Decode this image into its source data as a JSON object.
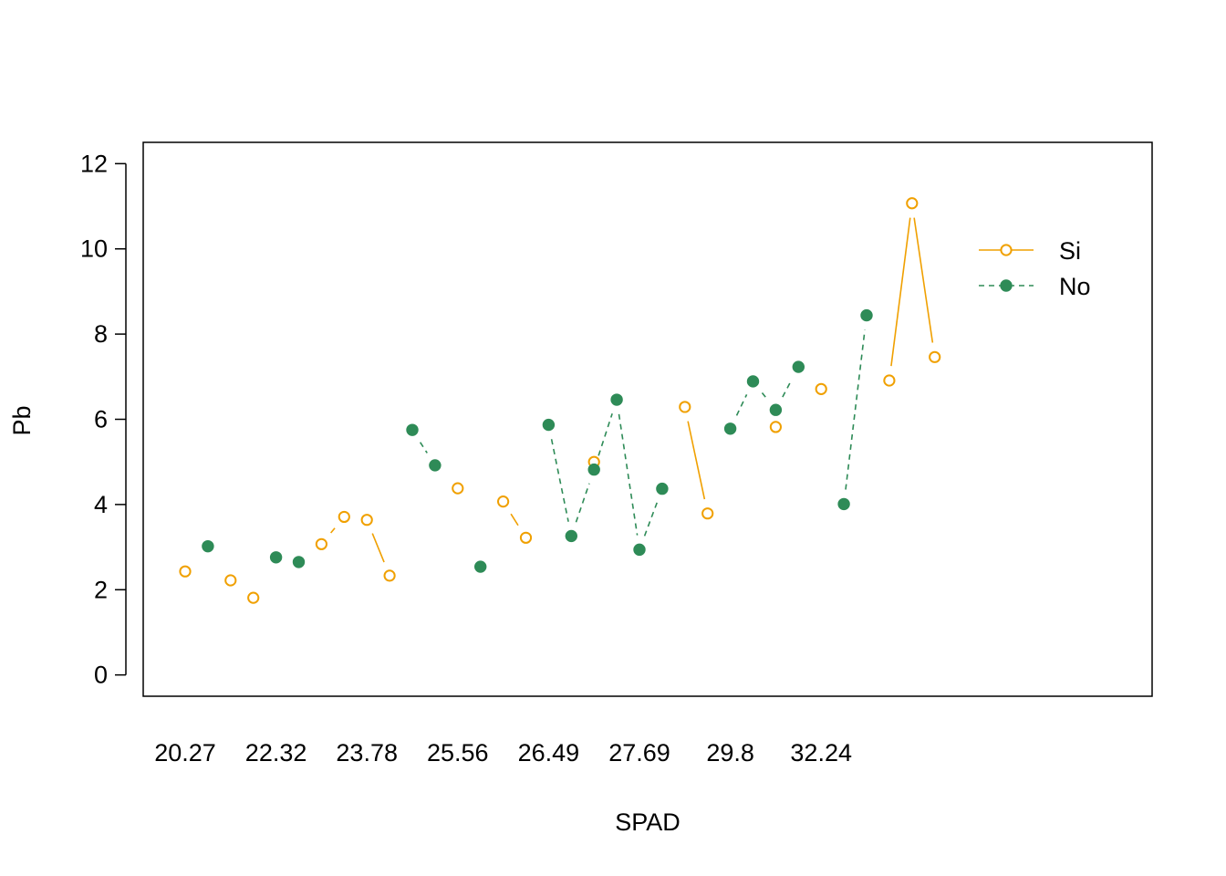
{
  "chart_data": {
    "type": "line",
    "title": "",
    "xlabel": "SPAD",
    "ylabel": "Pb",
    "x_tick_labels": [
      "20.27",
      "22.32",
      "23.78",
      "25.56",
      "26.49",
      "27.69",
      "29.8",
      "32.24"
    ],
    "y_ticks": [
      "0",
      "2",
      "4",
      "6",
      "8",
      "10",
      "12"
    ],
    "ylim": [
      -0.5,
      12.5
    ],
    "n_positions": 34,
    "legend": {
      "placement": "top-right",
      "entries": [
        "Si",
        "No"
      ]
    },
    "grid": false,
    "series": [
      {
        "name": "Si",
        "color": "#F0A000",
        "line_style": "solid",
        "marker": "open-circle",
        "values": [
          2.43,
          null,
          2.22,
          1.81,
          null,
          null,
          3.07,
          3.71,
          3.64,
          2.33,
          null,
          null,
          4.38,
          null,
          4.07,
          3.22,
          null,
          null,
          5.0,
          null,
          null,
          null,
          6.29,
          3.79,
          null,
          null,
          5.82,
          null,
          6.71,
          null,
          null,
          6.91,
          11.07,
          7.46
        ]
      },
      {
        "name": "No",
        "color": "#2E8B57",
        "line_style": "dashed",
        "marker": "filled-circle",
        "values": [
          null,
          3.02,
          null,
          null,
          2.76,
          2.65,
          null,
          null,
          null,
          null,
          5.75,
          4.92,
          null,
          2.54,
          null,
          null,
          5.87,
          3.26,
          4.82,
          6.46,
          2.94,
          4.37,
          null,
          null,
          5.78,
          6.89,
          6.22,
          7.23,
          null,
          4.01,
          8.44,
          null,
          null,
          null
        ]
      }
    ]
  }
}
